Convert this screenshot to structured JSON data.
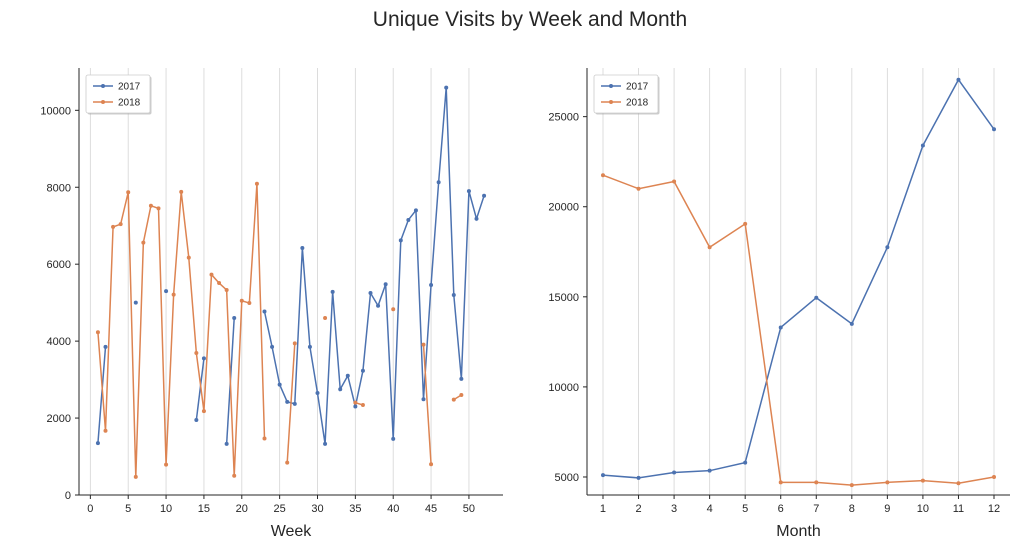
{
  "figure": {
    "title": "Unique Visits by Week and Month"
  },
  "chart_data": [
    {
      "type": "line",
      "xlabel": "Week",
      "ylabel": "",
      "xlim": [
        -1.5,
        54.5
      ],
      "ylim": [
        0,
        11100
      ],
      "xticks": [
        0,
        5,
        10,
        15,
        20,
        25,
        30,
        35,
        40,
        45,
        50
      ],
      "yticks": [
        0,
        2000,
        4000,
        6000,
        8000,
        10000
      ],
      "grid": "vertical",
      "legend": "top-left",
      "series": [
        {
          "name": "2017",
          "color": "#4c72b0",
          "x": [
            1,
            2,
            3,
            4,
            5,
            6,
            7,
            8,
            9,
            10,
            11,
            12,
            13,
            14,
            15,
            16,
            17,
            18,
            19,
            20,
            21,
            22,
            23,
            24,
            25,
            26,
            27,
            28,
            29,
            30,
            31,
            32,
            33,
            34,
            35,
            36,
            37,
            38,
            39,
            40,
            41,
            42,
            43,
            44,
            45,
            46,
            47,
            48,
            49,
            50,
            51,
            52
          ],
          "y": [
            1350,
            3850,
            null,
            null,
            null,
            5000,
            null,
            null,
            null,
            5300,
            null,
            null,
            null,
            1950,
            3550,
            null,
            null,
            1330,
            4600,
            null,
            null,
            null,
            4770,
            3850,
            2870,
            2420,
            2370,
            6420,
            3850,
            2650,
            1330,
            5280,
            2750,
            3100,
            2300,
            3230,
            5250,
            4920,
            5480,
            1460,
            6620,
            7150,
            7400,
            2490,
            5460,
            8130,
            10590,
            5200,
            3020,
            7900,
            7180,
            7780
          ]
        },
        {
          "name": "2018",
          "color": "#dd8452",
          "x": [
            1,
            2,
            3,
            4,
            5,
            6,
            7,
            8,
            9,
            10,
            11,
            12,
            13,
            14,
            15,
            16,
            17,
            18,
            19,
            20,
            21,
            22,
            23,
            24,
            25,
            26,
            27,
            28,
            29,
            30,
            31,
            32,
            33,
            34,
            35,
            36,
            37,
            38,
            39,
            40,
            41,
            42,
            43,
            44,
            45,
            46,
            47,
            48,
            49,
            50,
            51,
            52
          ],
          "y": [
            4230,
            1670,
            6970,
            7040,
            7870,
            470,
            6560,
            7520,
            7450,
            790,
            5210,
            7880,
            6170,
            3690,
            2180,
            5730,
            5510,
            5330,
            500,
            5050,
            4990,
            8090,
            1470,
            null,
            null,
            840,
            3940,
            null,
            null,
            null,
            4600,
            null,
            null,
            null,
            2400,
            2340,
            null,
            null,
            null,
            4830,
            null,
            null,
            null,
            3910,
            800,
            null,
            null,
            2480,
            2600,
            null,
            null,
            null
          ]
        }
      ]
    },
    {
      "type": "line",
      "xlabel": "Month",
      "ylabel": "",
      "xlim": [
        0.55,
        12.45
      ],
      "ylim": [
        4000,
        27700
      ],
      "xticks": [
        1,
        2,
        3,
        4,
        5,
        6,
        7,
        8,
        9,
        10,
        11,
        12
      ],
      "yticks": [
        5000,
        10000,
        15000,
        20000,
        25000
      ],
      "grid": "vertical",
      "legend": "top-left",
      "series": [
        {
          "name": "2017",
          "color": "#4c72b0",
          "x": [
            1,
            2,
            3,
            4,
            5,
            6,
            7,
            8,
            9,
            10,
            11,
            12
          ],
          "y": [
            5100,
            4950,
            5250,
            5350,
            5800,
            13300,
            14950,
            13500,
            17750,
            23400,
            27050,
            24300
          ]
        },
        {
          "name": "2018",
          "color": "#dd8452",
          "x": [
            1,
            2,
            3,
            4,
            5,
            6,
            7,
            8,
            9,
            10,
            11,
            12
          ],
          "y": [
            21750,
            21000,
            21400,
            17750,
            19050,
            4700,
            4700,
            4550,
            4700,
            4800,
            4650,
            5000
          ]
        }
      ]
    }
  ]
}
